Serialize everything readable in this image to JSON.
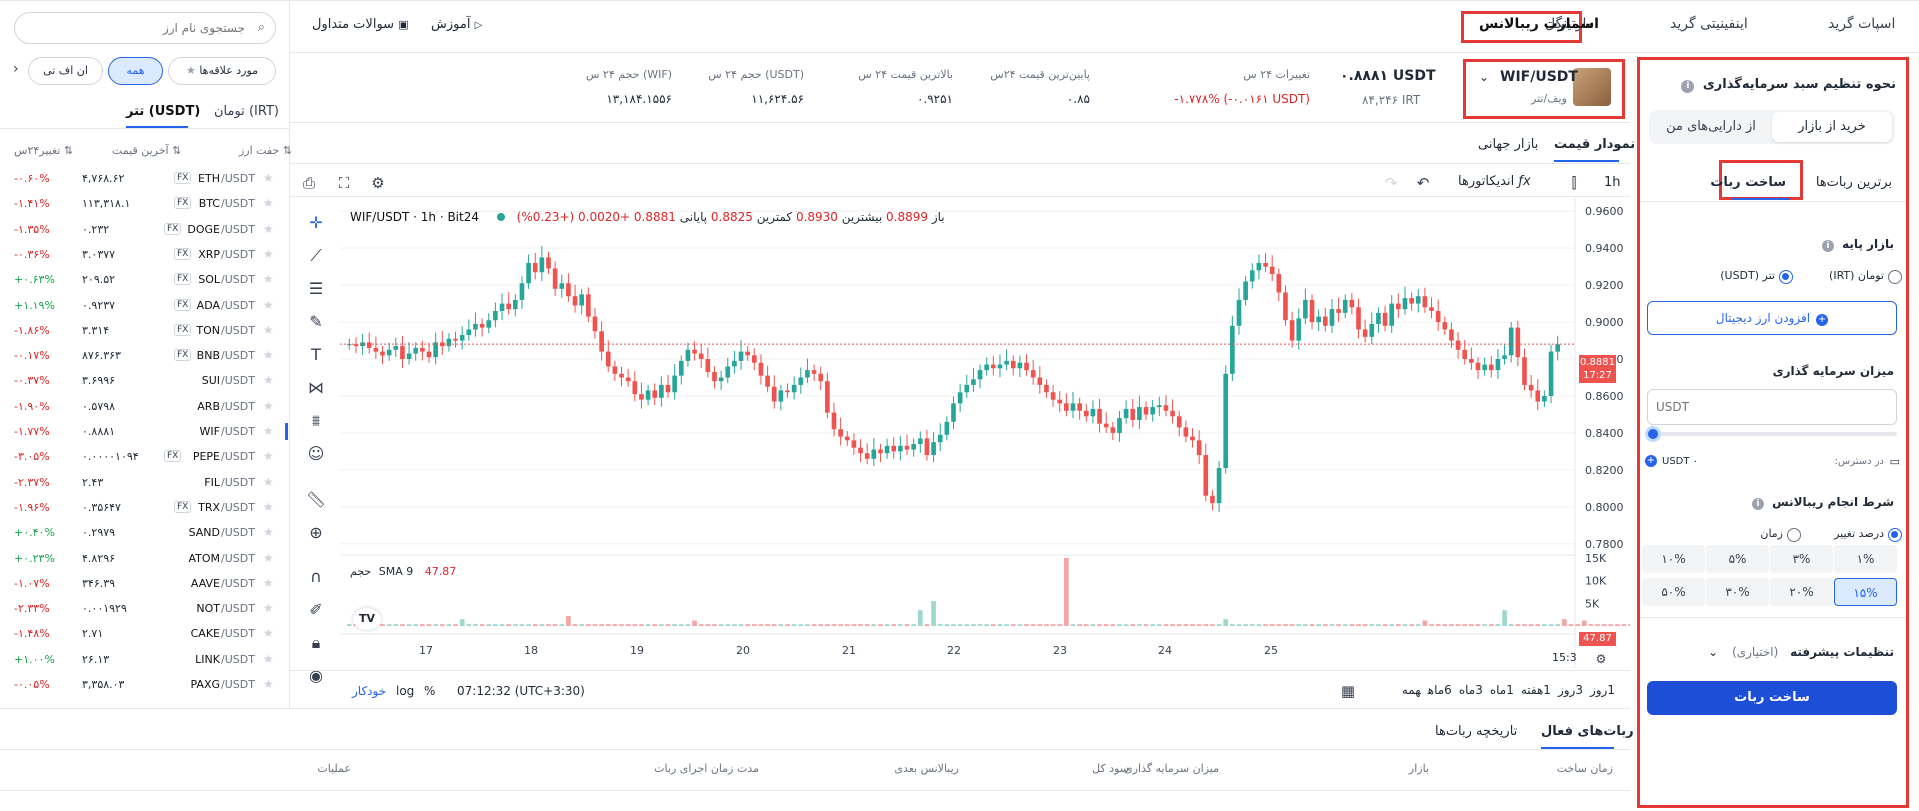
{
  "header": {
    "tabs": [
      {
        "label": "اسپات گرید"
      },
      {
        "label": "اینفینیتی گرید"
      },
      {
        "label": "مارتینگل"
      },
      {
        "label": "اسمارت ریبالانس"
      }
    ],
    "learn_label": "آموزش",
    "faq_label": "سوالات متداول"
  },
  "sidebar": {
    "search_placeholder": "جستجوی نام ارز",
    "filters": [
      {
        "label": "مورد علاقه‌ها"
      },
      {
        "label": "همه"
      },
      {
        "label": "ان اف تی"
      }
    ],
    "quote_tabs": [
      {
        "label": "تومان (IRT)"
      },
      {
        "label": "تتر (USDT)"
      }
    ],
    "columns": {
      "pair": "جفت ارز",
      "last_price": "آخرین قیمت",
      "change": "تغییر۲۴س"
    },
    "pairs": [
      {
        "base": "ETH",
        "quote": "/USDT",
        "fx": "FX",
        "price": "۴,۷۶۸.۶۲",
        "change": "-۰.۶۰%",
        "trend": "down"
      },
      {
        "base": "BTC",
        "quote": "/USDT",
        "fx": "FX",
        "price": "۱۱۳,۳۱۸.۱",
        "change": "-۱.۴۱%",
        "trend": "down"
      },
      {
        "base": "DOGE",
        "quote": "/USDT",
        "fx": "FX",
        "price": "۰.۲۳۲",
        "change": "-۱.۳۵%",
        "trend": "down"
      },
      {
        "base": "XRP",
        "quote": "/USDT",
        "fx": "FX",
        "price": "۳.۰۳۷۷",
        "change": "-۰.۳۶%",
        "trend": "down"
      },
      {
        "base": "SOL",
        "quote": "/USDT",
        "fx": "FX",
        "price": "۲۰۹.۵۲",
        "change": "+۰.۶۳%",
        "trend": "up"
      },
      {
        "base": "ADA",
        "quote": "/USDT",
        "fx": "FX",
        "price": "۰.۹۲۳۷",
        "change": "+۱.۱۹%",
        "trend": "up"
      },
      {
        "base": "TON",
        "quote": "/USDT",
        "fx": "FX",
        "price": "۳.۳۱۴",
        "change": "-۱.۸۶%",
        "trend": "down"
      },
      {
        "base": "BNB",
        "quote": "/USDT",
        "fx": "FX",
        "price": "۸۷۶.۳۶۳",
        "change": "-۰.۱۷%",
        "trend": "down"
      },
      {
        "base": "SUI",
        "quote": "/USDT",
        "fx": "",
        "price": "۳.۶۹۹۶",
        "change": "-۰.۳۷%",
        "trend": "down"
      },
      {
        "base": "ARB",
        "quote": "/USDT",
        "fx": "",
        "price": "۰.۵۷۹۸",
        "change": "-۱.۹۰%",
        "trend": "down"
      },
      {
        "base": "WIF",
        "quote": "/USDT",
        "fx": "",
        "price": "۰.۸۸۸۱",
        "change": "-۱.۷۷%",
        "trend": "down",
        "active": true
      },
      {
        "base": "PEPE",
        "quote": "/USDT",
        "fx": "FX",
        "price": "۰.۰۰۰۰۱۰۹۴",
        "change": "-۳.۰۵%",
        "trend": "down"
      },
      {
        "base": "FIL",
        "quote": "/USDT",
        "fx": "",
        "price": "۲.۴۳",
        "change": "-۲.۳۷%",
        "trend": "down"
      },
      {
        "base": "TRX",
        "quote": "/USDT",
        "fx": "FX",
        "price": "۰.۳۵۶۴۷",
        "change": "-۱.۹۶%",
        "trend": "down"
      },
      {
        "base": "SAND",
        "quote": "/USDT",
        "fx": "",
        "price": "۰.۲۹۷۹",
        "change": "+۰.۴۰%",
        "trend": "up"
      },
      {
        "base": "ATOM",
        "quote": "/USDT",
        "fx": "",
        "price": "۴.۸۲۹۶",
        "change": "+۰.۲۳%",
        "trend": "up"
      },
      {
        "base": "AAVE",
        "quote": "/USDT",
        "fx": "",
        "price": "۳۴۶.۳۹",
        "change": "-۱.۰۷%",
        "trend": "down"
      },
      {
        "base": "NOT",
        "quote": "/USDT",
        "fx": "",
        "price": "۰.۰۰۱۹۲۹",
        "change": "-۲.۳۳%",
        "trend": "down"
      },
      {
        "base": "CAKE",
        "quote": "/USDT",
        "fx": "",
        "price": "۲.۷۱",
        "change": "-۱.۴۸%",
        "trend": "down"
      },
      {
        "base": "LINK",
        "quote": "/USDT",
        "fx": "",
        "price": "۲۶.۱۳",
        "change": "+۱.۰۰%",
        "trend": "up"
      },
      {
        "base": "PAXG",
        "quote": "/USDT",
        "fx": "",
        "price": "۳,۳۵۸.۰۳",
        "change": "-۰.۰۵%",
        "trend": "down"
      }
    ]
  },
  "ticker": {
    "pair": "WIF/USDT",
    "pair_fa": "ویف/تتر",
    "price_usdt": "۰.۸۸۸۱ USDT",
    "price_irt": "۸۴,۲۴۶ IRT",
    "stats": [
      {
        "label": "تغییرات ۲۴ س",
        "value": "-۱.۷۷۸% (-۰.۰۱۶۱ USDT)",
        "red": true
      },
      {
        "label": "پایین‌ترین قیمت ۲۴س",
        "value": "۰.۸۵",
        "red": false
      },
      {
        "label": "بالاترین قیمت ۲۴ س",
        "value": "۰.۹۲۵۱",
        "red": false
      },
      {
        "label": "حجم ۲۴ س (USDT)",
        "value": "۱۱,۶۲۴.۵۶",
        "red": false
      },
      {
        "label": "حجم ۲۴ س (WIF)",
        "value": "۱۳,۱۸۴.۱۵۵۶",
        "red": false
      }
    ]
  },
  "chart_tabs": [
    {
      "label": "نمودار قیمت"
    },
    {
      "label": "بازار جهانی"
    }
  ],
  "chart_toolbar": {
    "interval": "1h",
    "indicators": "اندیکاتورها"
  },
  "chart_legend": {
    "symbol": "WIF/USDT · 1h · Bit24",
    "open_label": "باز",
    "open": "0.8899",
    "high_label": "بیشترین",
    "high": "0.8930",
    "low_label": "کمترین",
    "low": "0.8825",
    "close_label": "پایانی",
    "close": "0.8881",
    "change": "+0.0020 (+0.23%)"
  },
  "volume_legend": {
    "label": "حجم",
    "sma": "SMA 9",
    "value": "47.87"
  },
  "last_price_tag": {
    "price": "0.8881",
    "countdown": "17:27"
  },
  "volume_tag": "47.87",
  "corner_time": "15:3",
  "chart_data": {
    "type": "candlestick",
    "price_axis": {
      "ticks": [
        "0.9600",
        "0.9400",
        "0.9200",
        "0.9000",
        "0.8800",
        "0.8600",
        "0.8400",
        "0.8200",
        "0.8000",
        "0.7800"
      ],
      "min": 0.775,
      "max": 0.965
    },
    "volume_axis": {
      "ticks": [
        "15K",
        "10K",
        "5K"
      ]
    },
    "x_ticks": [
      "17",
      "18",
      "19",
      "20",
      "21",
      "22",
      "23",
      "24",
      "25"
    ],
    "close_series": [
      0.888,
      0.887,
      0.889,
      0.886,
      0.884,
      0.882,
      0.885,
      0.887,
      0.88,
      0.883,
      0.886,
      0.884,
      0.881,
      0.889,
      0.887,
      0.891,
      0.89,
      0.893,
      0.896,
      0.899,
      0.897,
      0.901,
      0.906,
      0.91,
      0.907,
      0.912,
      0.921,
      0.932,
      0.927,
      0.935,
      0.929,
      0.918,
      0.921,
      0.914,
      0.909,
      0.915,
      0.903,
      0.895,
      0.884,
      0.876,
      0.872,
      0.87,
      0.868,
      0.861,
      0.858,
      0.863,
      0.859,
      0.866,
      0.862,
      0.871,
      0.879,
      0.885,
      0.883,
      0.88,
      0.873,
      0.868,
      0.87,
      0.876,
      0.879,
      0.884,
      0.882,
      0.878,
      0.871,
      0.865,
      0.857,
      0.863,
      0.862,
      0.866,
      0.87,
      0.874,
      0.872,
      0.868,
      0.851,
      0.842,
      0.838,
      0.836,
      0.832,
      0.829,
      0.826,
      0.831,
      0.829,
      0.833,
      0.83,
      0.833,
      0.831,
      0.834,
      0.837,
      0.828,
      0.835,
      0.839,
      0.846,
      0.856,
      0.862,
      0.866,
      0.869,
      0.874,
      0.877,
      0.875,
      0.877,
      0.879,
      0.875,
      0.878,
      0.874,
      0.87,
      0.866,
      0.862,
      0.858,
      0.856,
      0.852,
      0.856,
      0.852,
      0.849,
      0.853,
      0.845,
      0.843,
      0.84,
      0.848,
      0.853,
      0.847,
      0.854,
      0.85,
      0.854,
      0.855,
      0.852,
      0.849,
      0.843,
      0.838,
      0.836,
      0.828,
      0.806,
      0.802,
      0.821,
      0.872,
      0.898,
      0.912,
      0.922,
      0.928,
      0.932,
      0.93,
      0.926,
      0.916,
      0.901,
      0.89,
      0.902,
      0.912,
      0.9,
      0.903,
      0.898,
      0.907,
      0.905,
      0.912,
      0.908,
      0.896,
      0.892,
      0.899,
      0.905,
      0.898,
      0.91,
      0.907,
      0.913,
      0.91,
      0.914,
      0.908,
      0.906,
      0.9,
      0.896,
      0.89,
      0.885,
      0.88,
      0.878,
      0.874,
      0.877,
      0.874,
      0.88,
      0.882,
      0.897,
      0.881,
      0.866,
      0.863,
      0.857,
      0.86,
      0.884,
      0.888
    ],
    "volume_series": [
      1,
      1,
      1,
      1,
      1,
      1,
      1,
      1,
      1,
      1,
      1,
      1,
      1,
      1,
      1,
      1,
      1,
      1,
      1,
      1,
      1,
      1,
      1,
      1,
      1,
      1,
      1,
      1,
      1,
      1,
      1,
      1,
      1,
      1,
      1,
      1,
      1,
      1,
      1,
      1,
      1,
      1,
      1,
      1,
      1,
      1,
      1,
      1,
      1,
      1,
      1,
      1,
      1,
      1,
      1,
      1,
      1,
      1,
      1,
      1,
      1,
      1,
      1,
      1,
      1,
      1,
      1,
      1,
      1,
      1,
      1,
      1,
      1,
      1,
      1,
      1,
      1,
      1,
      1,
      1,
      1,
      1,
      1,
      1,
      1,
      1,
      1,
      1,
      1,
      1,
      1,
      1,
      1,
      1,
      1,
      1,
      1,
      1,
      1,
      1,
      1,
      1,
      1,
      1,
      1,
      1,
      1,
      1,
      1,
      1,
      1,
      1,
      1,
      1,
      1,
      1,
      1,
      1,
      1,
      1,
      1,
      1,
      1,
      1,
      1,
      1,
      1,
      1,
      1,
      1,
      1,
      1,
      1,
      1,
      1,
      1,
      1,
      1,
      1,
      1,
      1,
      1,
      1,
      1,
      1,
      1,
      1,
      1,
      1,
      1,
      1,
      1,
      1,
      1,
      1,
      1,
      1,
      1,
      1,
      1,
      1,
      1,
      1,
      1,
      1,
      1,
      1,
      1,
      1,
      1,
      1,
      1,
      1,
      1,
      1,
      1,
      1,
      1,
      1,
      1,
      1,
      1,
      1,
      1,
      1,
      1,
      1,
      1,
      1,
      1,
      1,
      1,
      1,
      1,
      1
    ],
    "volume_spikes": [
      {
        "i": 17,
        "v": 1500
      },
      {
        "i": 33,
        "v": 2200
      },
      {
        "i": 88,
        "v": 5500
      },
      {
        "i": 86,
        "v": 3500
      },
      {
        "i": 108,
        "v": 15000
      },
      {
        "i": 132,
        "v": 1500
      },
      {
        "i": 162,
        "v": 1200
      },
      {
        "i": 183,
        "v": 1500
      },
      {
        "i": 186,
        "v": 1200
      },
      {
        "i": 174,
        "v": 3500
      },
      {
        "i": 201,
        "v": 2500
      },
      {
        "i": 52,
        "v": 1200
      }
    ]
  },
  "chart_bottom": {
    "ranges": [
      "1روز",
      "3روز",
      "1هفته",
      "1ماه",
      "3ماه",
      "6ماه",
      "همه"
    ],
    "timestamp": "07:12:32 (UTC+3:30)",
    "pct": "%",
    "log": "log",
    "auto": "خودکار"
  },
  "bottom_tabs": [
    {
      "label": "ربات‌های فعال"
    },
    {
      "label": "تاریخچه ربات‌ها"
    }
  ],
  "bottom_columns": [
    "زمان ساخت",
    "بازار",
    "میزان سرمایه گذاری",
    "سود کل",
    "ریبالانس بعدی",
    "مدت زمان اجرای ربات",
    "عملیات"
  ],
  "panel": {
    "title": "نحوه تنظیم سبد سرمایه‌گذاری",
    "source_options": [
      {
        "label": "خرید از بازار"
      },
      {
        "label": "از دارایی‌های من"
      }
    ],
    "tabs": [
      {
        "label": "برترین ربات‌ها"
      },
      {
        "label": "ساخت ربات"
      }
    ],
    "base_market_label": "بازار پایه",
    "base_options": [
      {
        "label": "تومان (IRT)"
      },
      {
        "label": "تتر (USDT)"
      }
    ],
    "add_coin_label": "افزودن ارز دیجیتال",
    "invest_label": "میزان سرمایه گذاری",
    "invest_placeholder": "USDT",
    "available_label": "در دسترس:",
    "available_value": "USDT ۰",
    "condition_label": "شرط انجام ریبالانس",
    "condition_options": [
      {
        "label": "درصد تغییر"
      },
      {
        "label": "زمان"
      }
    ],
    "percents": [
      "۱%",
      "۳%",
      "۵%",
      "۱۰%",
      "۱۵%",
      "۲۰%",
      "۳۰%",
      "۵۰%"
    ],
    "advanced_label": "تنظیمات پیشرفته",
    "advanced_optional": "(اختیاری)",
    "submit_label": "ساخت ربات"
  },
  "colors": {
    "accent": "#2563eb",
    "up": "#26a69a",
    "down": "#ef5350",
    "highlight": "#e53935"
  }
}
